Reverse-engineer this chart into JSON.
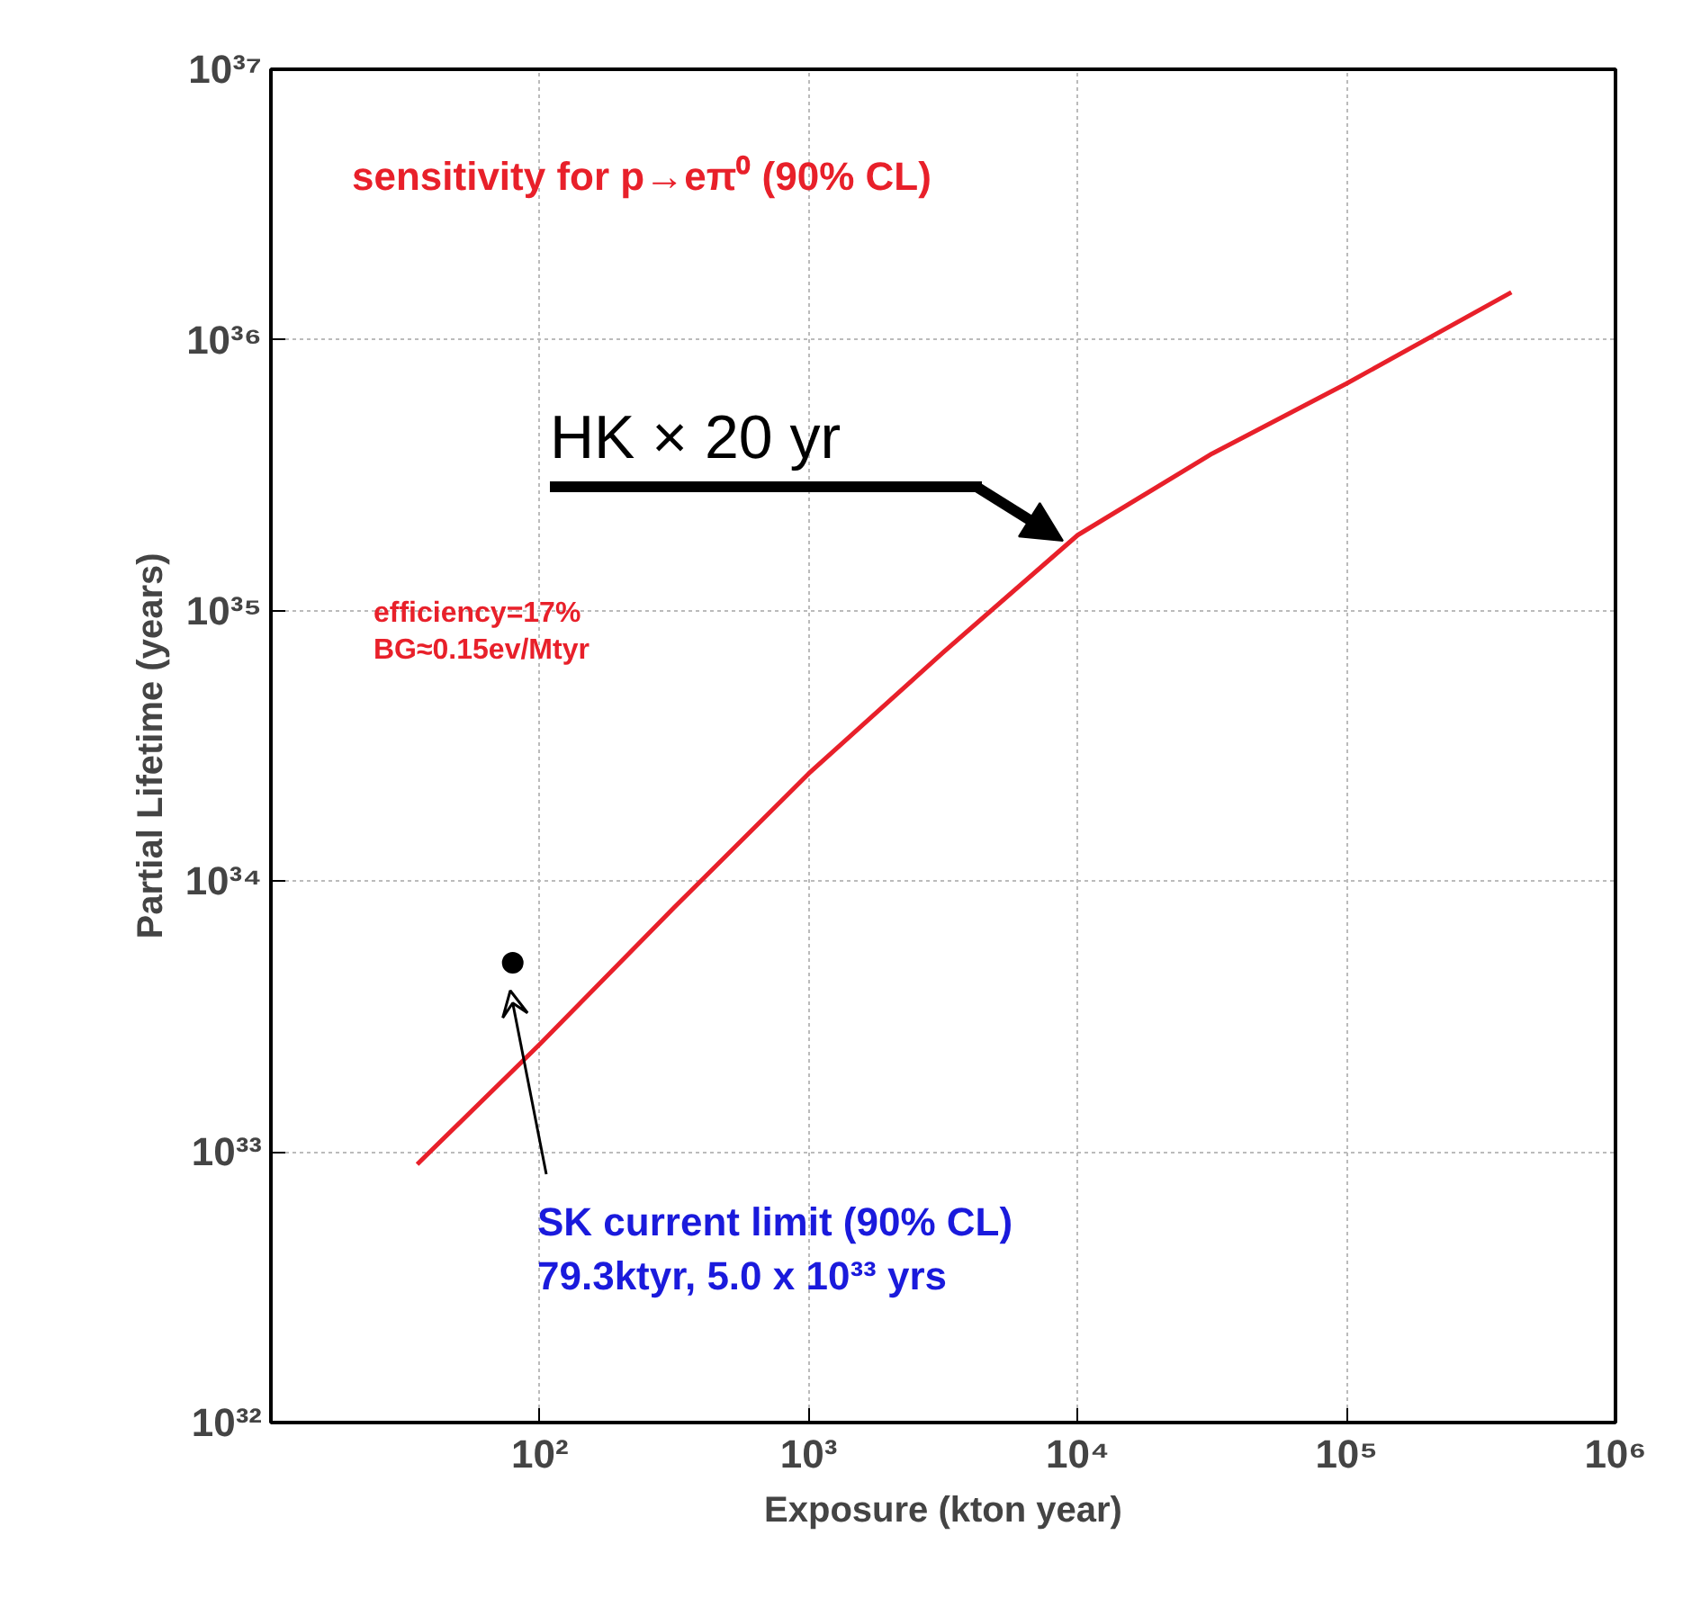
{
  "chart_data": {
    "type": "line",
    "xlabel": "Exposure (kton year)",
    "ylabel": "Partial Lifetime (years)",
    "log": "xy",
    "grid": true,
    "xlim": [
      10,
      1000000
    ],
    "ylim": [
      1e+32,
      1e+37
    ],
    "xticks": [
      {
        "value": 100,
        "label": "10²"
      },
      {
        "value": 1000,
        "label": "10³"
      },
      {
        "value": 10000,
        "label": "10⁴"
      },
      {
        "value": 100000,
        "label": "10⁵"
      },
      {
        "value": 1000000,
        "label": "10⁶"
      }
    ],
    "yticks": [
      {
        "value": 1e+32,
        "label": "10³²"
      },
      {
        "value": 1e+33,
        "label": "10³³"
      },
      {
        "value": 1e+34,
        "label": "10³⁴"
      },
      {
        "value": 1e+35,
        "label": "10³⁵"
      },
      {
        "value": 1e+36,
        "label": "10³⁶"
      },
      {
        "value": 1e+37,
        "label": "10³⁷"
      }
    ],
    "series": [
      {
        "color": "#e8202a",
        "line_style": "solid",
        "x": [
          35,
          100,
          316,
          1000,
          3160,
          10000,
          31600,
          100000,
          410000
        ],
        "values": [
          9e+32,
          2.5e+33,
          8e+33,
          2.5e+34,
          7e+34,
          1.9e+35,
          3.8e+35,
          6.9e+35,
          1.5e+36
        ]
      },
      {
        "type": "scatter",
        "color": "#000000",
        "marker": "circle",
        "x": [
          79.3
        ],
        "values": [
          5e+33
        ]
      }
    ],
    "annotations": [
      "sensitivity for p→eπ⁰ (90% CL)",
      "efficiency=17%\nBG≈0.15ev/Mtyr",
      "HK × 20 yr",
      "SK current limit (90% CL)\n79.3ktyr, 5.0 x 10³³ yrs"
    ]
  }
}
